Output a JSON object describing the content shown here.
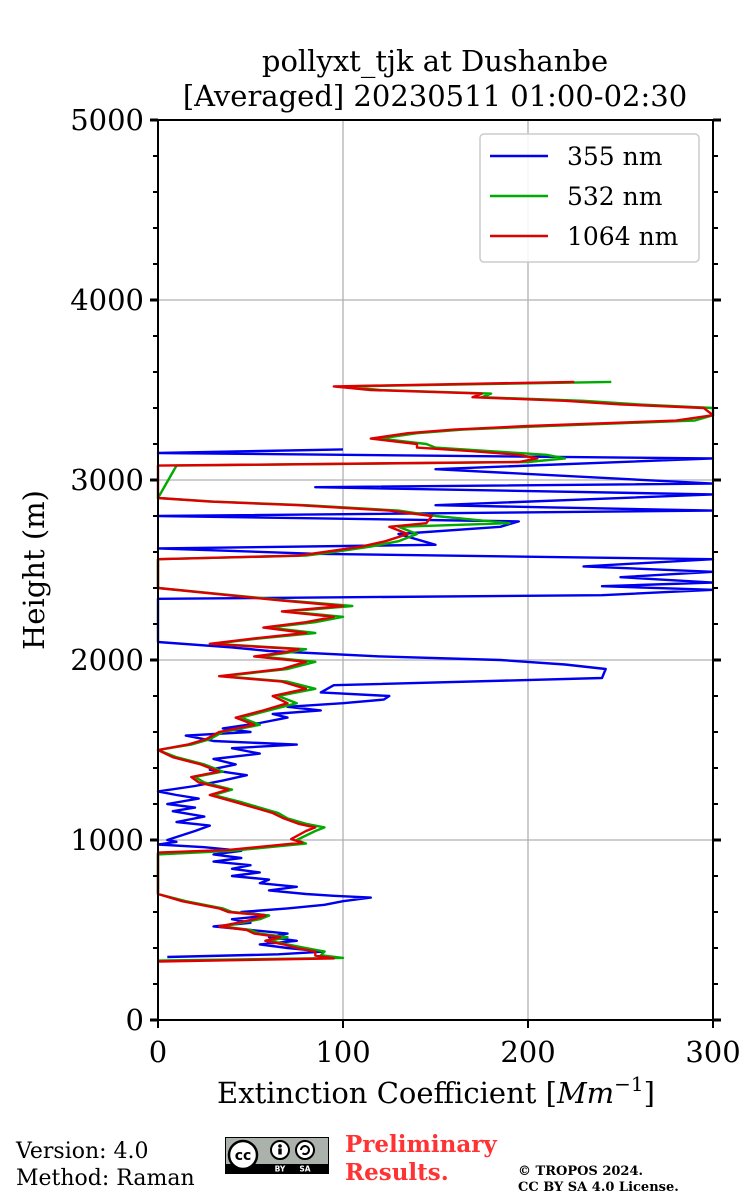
{
  "chart_data": {
    "type": "line",
    "title": "pollyxt_tjk at Dushanbe",
    "subtitle": "[Averaged] 20230511 01:00-02:30",
    "xlabel": "Extinction Coefficient [",
    "xlabel_unit": "Mm",
    "xlabel_exp": "−1",
    "xlabel_close": "]",
    "ylabel": "Height (m)",
    "xlim": [
      0,
      300
    ],
    "ylim": [
      0,
      5000
    ],
    "xticks": [
      0,
      100,
      200,
      300
    ],
    "yticks": [
      0,
      1000,
      2000,
      3000,
      4000,
      5000
    ],
    "grid": true,
    "legend_position": "top-right",
    "series": [
      {
        "name": "355 nm",
        "color": "#0000ee",
        "points": [
          [
            5,
            350
          ],
          [
            65,
            365
          ],
          [
            90,
            380
          ],
          [
            70,
            400
          ],
          [
            55,
            420
          ],
          [
            75,
            440
          ],
          [
            60,
            460
          ],
          [
            70,
            480
          ],
          [
            50,
            500
          ],
          [
            30,
            520
          ],
          [
            50,
            540
          ],
          [
            40,
            560
          ],
          [
            60,
            580
          ],
          [
            45,
            600
          ],
          [
            70,
            620
          ],
          [
            90,
            640
          ],
          [
            100,
            660
          ],
          [
            115,
            680
          ],
          [
            95,
            690
          ],
          [
            80,
            700
          ],
          [
            60,
            720
          ],
          [
            75,
            740
          ],
          [
            55,
            760
          ],
          [
            60,
            780
          ],
          [
            40,
            800
          ],
          [
            55,
            820
          ],
          [
            40,
            840
          ],
          [
            50,
            860
          ],
          [
            30,
            880
          ],
          [
            45,
            900
          ],
          [
            30,
            920
          ],
          [
            45,
            940
          ],
          [
            25,
            960
          ],
          [
            0,
            975
          ],
          [
            10,
            990
          ],
          [
            5,
            1000
          ],
          [
            20,
            1050
          ],
          [
            28,
            1080
          ],
          [
            10,
            1100
          ],
          [
            25,
            1130
          ],
          [
            8,
            1160
          ],
          [
            20,
            1180
          ],
          [
            5,
            1200
          ],
          [
            22,
            1230
          ],
          [
            10,
            1250
          ],
          [
            0,
            1270
          ],
          [
            20,
            1300
          ],
          [
            35,
            1330
          ],
          [
            48,
            1360
          ],
          [
            28,
            1390
          ],
          [
            42,
            1420
          ],
          [
            30,
            1450
          ],
          [
            55,
            1480
          ],
          [
            40,
            1510
          ],
          [
            75,
            1530
          ],
          [
            30,
            1550
          ],
          [
            15,
            1580
          ],
          [
            50,
            1600
          ],
          [
            35,
            1620
          ],
          [
            55,
            1650
          ],
          [
            70,
            1680
          ],
          [
            62,
            1700
          ],
          [
            88,
            1720
          ],
          [
            70,
            1740
          ],
          [
            100,
            1760
          ],
          [
            122,
            1780
          ],
          [
            125,
            1800
          ],
          [
            88,
            1820
          ],
          [
            95,
            1860
          ],
          [
            240,
            1900
          ],
          [
            242,
            1950
          ],
          [
            220,
            1975
          ],
          [
            185,
            2000
          ],
          [
            120,
            2020
          ],
          [
            60,
            2050
          ],
          [
            40,
            2070
          ],
          [
            0,
            2100
          ],
          [
            0,
            2340
          ],
          [
            240,
            2360
          ],
          [
            300,
            2390
          ],
          [
            240,
            2410
          ],
          [
            300,
            2430
          ],
          [
            250,
            2460
          ],
          [
            300,
            2490
          ],
          [
            230,
            2520
          ],
          [
            300,
            2560
          ],
          [
            85,
            2590
          ],
          [
            0,
            2620
          ],
          [
            150,
            2640
          ],
          [
            130,
            2700
          ],
          [
            185,
            2740
          ],
          [
            195,
            2770
          ],
          [
            0,
            2800
          ],
          [
            300,
            2830
          ],
          [
            150,
            2860
          ],
          [
            300,
            2920
          ],
          [
            85,
            2960
          ],
          [
            300,
            2980
          ],
          [
            150,
            3060
          ],
          [
            300,
            3120
          ],
          [
            0,
            3150
          ],
          [
            100,
            3170
          ]
        ]
      },
      {
        "name": "532 nm",
        "color": "#00aa00",
        "points": [
          [
            0,
            330
          ],
          [
            100,
            345
          ],
          [
            88,
            360
          ],
          [
            90,
            380
          ],
          [
            80,
            400
          ],
          [
            70,
            420
          ],
          [
            60,
            440
          ],
          [
            70,
            460
          ],
          [
            55,
            480
          ],
          [
            50,
            500
          ],
          [
            35,
            520
          ],
          [
            45,
            540
          ],
          [
            55,
            560
          ],
          [
            60,
            580
          ],
          [
            40,
            600
          ],
          [
            35,
            620
          ],
          [
            25,
            640
          ],
          [
            15,
            660
          ],
          [
            0,
            700
          ],
          [
            0,
            920
          ],
          [
            40,
            940
          ],
          [
            60,
            960
          ],
          [
            80,
            980
          ],
          [
            75,
            1000
          ],
          [
            85,
            1050
          ],
          [
            90,
            1070
          ],
          [
            80,
            1090
          ],
          [
            70,
            1120
          ],
          [
            65,
            1150
          ],
          [
            55,
            1180
          ],
          [
            45,
            1210
          ],
          [
            30,
            1250
          ],
          [
            40,
            1280
          ],
          [
            25,
            1320
          ],
          [
            20,
            1350
          ],
          [
            35,
            1380
          ],
          [
            25,
            1420
          ],
          [
            10,
            1460
          ],
          [
            0,
            1500
          ],
          [
            18,
            1530
          ],
          [
            28,
            1560
          ],
          [
            35,
            1600
          ],
          [
            55,
            1640
          ],
          [
            45,
            1680
          ],
          [
            60,
            1720
          ],
          [
            75,
            1760
          ],
          [
            65,
            1800
          ],
          [
            85,
            1840
          ],
          [
            70,
            1880
          ],
          [
            35,
            1910
          ],
          [
            70,
            1950
          ],
          [
            85,
            1990
          ],
          [
            55,
            2020
          ],
          [
            70,
            2040
          ],
          [
            80,
            2060
          ],
          [
            30,
            2090
          ],
          [
            55,
            2120
          ],
          [
            85,
            2150
          ],
          [
            60,
            2180
          ],
          [
            85,
            2210
          ],
          [
            100,
            2240
          ],
          [
            70,
            2270
          ],
          [
            105,
            2300
          ],
          [
            70,
            2330
          ],
          [
            40,
            2360
          ],
          [
            0,
            2400
          ],
          [
            0,
            2560
          ],
          [
            80,
            2580
          ],
          [
            95,
            2600
          ],
          [
            115,
            2630
          ],
          [
            130,
            2660
          ],
          [
            140,
            2700
          ],
          [
            130,
            2740
          ],
          [
            190,
            2760
          ],
          [
            150,
            2800
          ],
          [
            130,
            2830
          ],
          [
            80,
            2860
          ],
          [
            30,
            2880
          ],
          [
            0,
            2900
          ],
          [
            10,
            3080
          ],
          [
            200,
            3100
          ],
          [
            220,
            3120
          ],
          [
            210,
            3140
          ],
          [
            180,
            3160
          ],
          [
            150,
            3180
          ],
          [
            145,
            3200
          ],
          [
            120,
            3230
          ],
          [
            140,
            3260
          ],
          [
            165,
            3280
          ],
          [
            210,
            3300
          ],
          [
            290,
            3330
          ],
          [
            300,
            3360
          ],
          [
            300,
            3400
          ],
          [
            260,
            3420
          ],
          [
            230,
            3440
          ],
          [
            175,
            3460
          ],
          [
            180,
            3480
          ],
          [
            120,
            3500
          ],
          [
            100,
            3520
          ],
          [
            245,
            3545
          ]
        ]
      },
      {
        "name": "1064 nm",
        "color": "#dd0000",
        "points": [
          [
            0,
            325
          ],
          [
            95,
            342
          ],
          [
            85,
            358
          ],
          [
            85,
            380
          ],
          [
            75,
            400
          ],
          [
            68,
            420
          ],
          [
            58,
            440
          ],
          [
            66,
            460
          ],
          [
            52,
            480
          ],
          [
            48,
            500
          ],
          [
            33,
            520
          ],
          [
            43,
            540
          ],
          [
            52,
            560
          ],
          [
            58,
            580
          ],
          [
            38,
            600
          ],
          [
            33,
            620
          ],
          [
            23,
            640
          ],
          [
            13,
            660
          ],
          [
            0,
            700
          ],
          [
            0,
            930
          ],
          [
            38,
            945
          ],
          [
            58,
            965
          ],
          [
            78,
            985
          ],
          [
            72,
            1005
          ],
          [
            80,
            1050
          ],
          [
            85,
            1070
          ],
          [
            76,
            1090
          ],
          [
            68,
            1120
          ],
          [
            62,
            1150
          ],
          [
            52,
            1180
          ],
          [
            42,
            1210
          ],
          [
            28,
            1250
          ],
          [
            38,
            1280
          ],
          [
            22,
            1320
          ],
          [
            18,
            1350
          ],
          [
            33,
            1380
          ],
          [
            23,
            1420
          ],
          [
            8,
            1460
          ],
          [
            0,
            1500
          ],
          [
            16,
            1530
          ],
          [
            26,
            1560
          ],
          [
            33,
            1600
          ],
          [
            52,
            1640
          ],
          [
            42,
            1680
          ],
          [
            57,
            1720
          ],
          [
            70,
            1760
          ],
          [
            62,
            1800
          ],
          [
            80,
            1840
          ],
          [
            67,
            1880
          ],
          [
            33,
            1910
          ],
          [
            67,
            1950
          ],
          [
            80,
            1990
          ],
          [
            52,
            2020
          ],
          [
            67,
            2040
          ],
          [
            76,
            2060
          ],
          [
            28,
            2090
          ],
          [
            52,
            2120
          ],
          [
            80,
            2150
          ],
          [
            57,
            2180
          ],
          [
            80,
            2210
          ],
          [
            95,
            2240
          ],
          [
            67,
            2270
          ],
          [
            100,
            2300
          ],
          [
            67,
            2330
          ],
          [
            38,
            2360
          ],
          [
            0,
            2400
          ],
          [
            0,
            2560
          ],
          [
            76,
            2580
          ],
          [
            90,
            2600
          ],
          [
            110,
            2630
          ],
          [
            123,
            2660
          ],
          [
            135,
            2700
          ],
          [
            125,
            2740
          ],
          [
            145,
            2760
          ],
          [
            148,
            2800
          ],
          [
            125,
            2830
          ],
          [
            76,
            2860
          ],
          [
            28,
            2880
          ],
          [
            0,
            2900
          ],
          [
            0,
            3080
          ],
          [
            195,
            3100
          ],
          [
            205,
            3120
          ],
          [
            195,
            3140
          ],
          [
            170,
            3160
          ],
          [
            140,
            3180
          ],
          [
            140,
            3200
          ],
          [
            115,
            3230
          ],
          [
            135,
            3260
          ],
          [
            160,
            3280
          ],
          [
            200,
            3300
          ],
          [
            280,
            3330
          ],
          [
            300,
            3360
          ],
          [
            295,
            3400
          ],
          [
            250,
            3420
          ],
          [
            220,
            3440
          ],
          [
            170,
            3460
          ],
          [
            175,
            3480
          ],
          [
            115,
            3500
          ],
          [
            95,
            3520
          ],
          [
            225,
            3545
          ]
        ]
      }
    ]
  },
  "footer": {
    "version": "Version: 4.0",
    "method": "Method: Raman",
    "preliminary_line1": "Preliminary",
    "preliminary_line2": "Results.",
    "copyright_line1": "© TROPOS 2024.",
    "copyright_line2": "CC BY SA 4.0 License."
  },
  "license_badge": {
    "text": "cc",
    "label_by": "BY",
    "label_sa": "SA"
  }
}
